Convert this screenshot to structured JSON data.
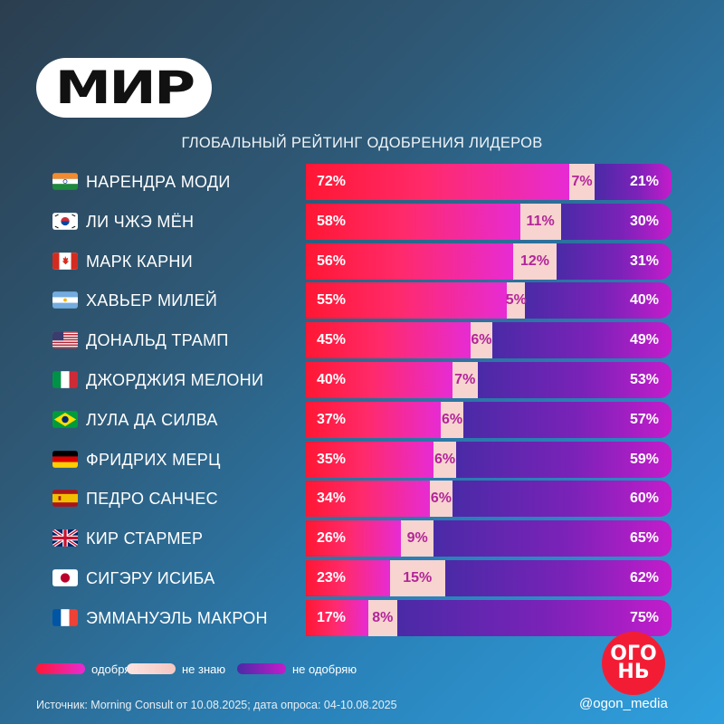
{
  "header": {
    "logo": "МИР"
  },
  "chart_data": {
    "type": "bar",
    "stacked": true,
    "orientation": "horizontal",
    "title": "ГЛОБАЛЬНЫЙ РЕЙТИНГ ОДОБРЕНИЯ ЛИДЕРОВ",
    "categories": [
      "НАРЕНДРА МОДИ",
      "ЛИ ЧЖЭ МЁН",
      "МАРК КАРНИ",
      "ХАВЬЕР МИЛЕЙ",
      "ДОНАЛЬД ТРАМП",
      "ДЖОРДЖИЯ МЕЛОНИ",
      "ЛУЛА ДА СИЛВА",
      "ФРИДРИХ МЕРЦ",
      "ПЕДРО САНЧЕС",
      "КИР СТАРМЕР",
      "СИГЭРУ ИСИБА",
      "ЭММАНУЭЛЬ МАКРОН"
    ],
    "flags": [
      "india",
      "south-korea",
      "canada",
      "argentina",
      "usa",
      "italy",
      "brazil",
      "germany",
      "spain",
      "uk",
      "japan",
      "france"
    ],
    "series": [
      {
        "name": "одобряю",
        "color": "#ff1733",
        "values": [
          72,
          58,
          56,
          55,
          45,
          40,
          37,
          35,
          34,
          26,
          23,
          17
        ]
      },
      {
        "name": "не знаю",
        "color": "#f7d4cf",
        "values": [
          7,
          11,
          12,
          5,
          6,
          7,
          6,
          6,
          6,
          9,
          15,
          8
        ]
      },
      {
        "name": "не одобряю",
        "color": "#6a25b0",
        "values": [
          21,
          30,
          31,
          40,
          49,
          53,
          57,
          59,
          60,
          65,
          62,
          75
        ]
      }
    ],
    "unit": "%"
  },
  "legend": {
    "approve": "одобряю",
    "unknown": "не знаю",
    "disapprove": "не одобряю"
  },
  "brand": {
    "line1": "ОГО",
    "line2": "НЬ",
    "handle": "@ogon_media"
  },
  "footer": {
    "source": "Источник: Morning Consult от 10.08.2025; дата опроса: 04-10.08.2025"
  }
}
